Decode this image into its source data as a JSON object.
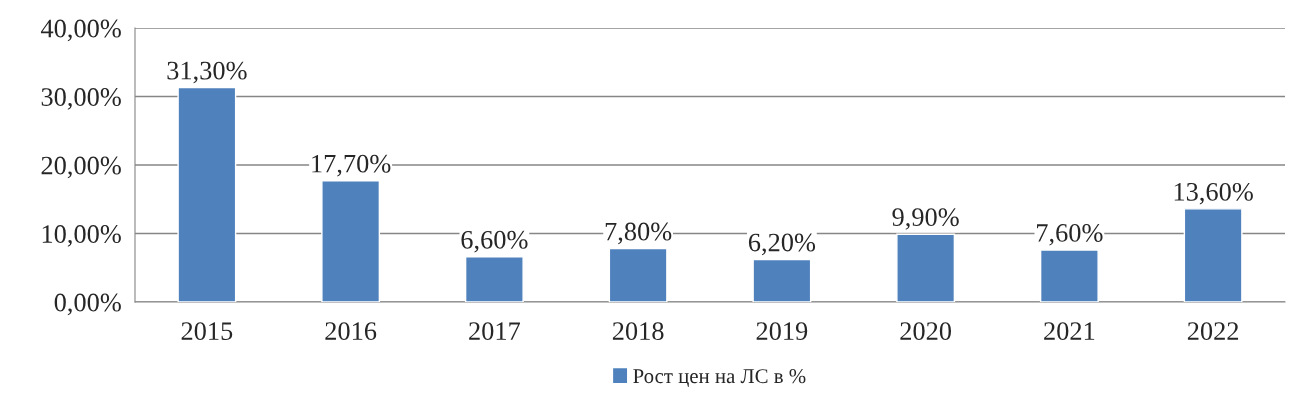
{
  "chart_data": {
    "type": "bar",
    "categories": [
      "2015",
      "2016",
      "2017",
      "2018",
      "2019",
      "2020",
      "2021",
      "2022"
    ],
    "series": [
      {
        "name": "Рост цен на ЛС в %",
        "color": "#4f81bd",
        "values": [
          31.3,
          17.7,
          6.6,
          7.8,
          6.2,
          9.9,
          7.6,
          13.6
        ],
        "value_labels": [
          "31,30%",
          "17,70%",
          "6,60%",
          "7,80%",
          "6,20%",
          "9,90%",
          "7,60%",
          "13,60%"
        ]
      }
    ],
    "ylim": [
      0,
      40
    ],
    "yticks": [
      {
        "value": 0,
        "label": "0,00%"
      },
      {
        "value": 10,
        "label": "10,00%"
      },
      {
        "value": 20,
        "label": "20,00%"
      },
      {
        "value": 30,
        "label": "30,00%"
      },
      {
        "value": 40,
        "label": "40,00%"
      }
    ],
    "grid": "y",
    "legend": "bottom"
  }
}
